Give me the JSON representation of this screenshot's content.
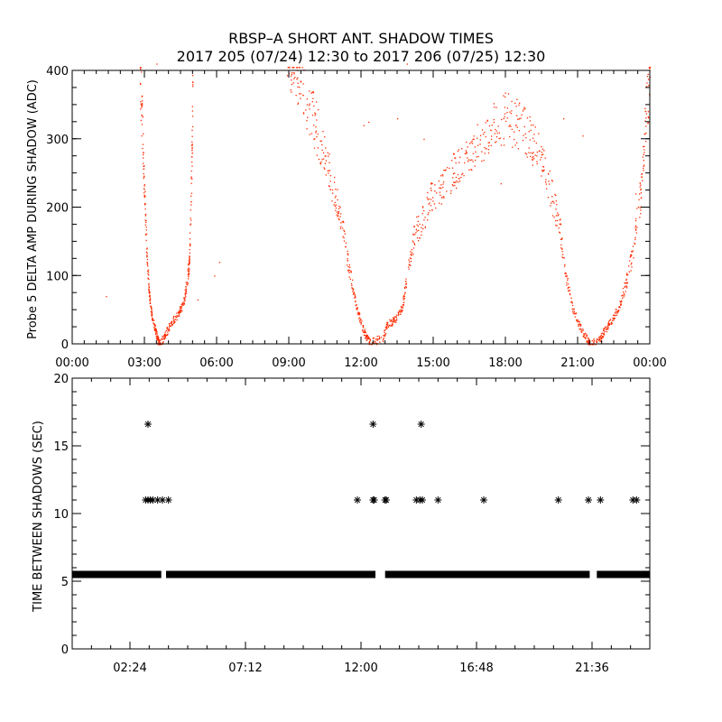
{
  "figure": {
    "title_line1": "RBSP–A SHORT ANT. SHADOW TIMES",
    "title_line2": "2017 205 (07/24) 12:30 to 2017 206 (07/25) 12:30"
  },
  "colors": {
    "shadow_amp": "#ff2a00",
    "gap_marks": "#000000",
    "axes": "#000000"
  },
  "chart_data": [
    {
      "id": "top",
      "type": "scatter",
      "ylabel": "Probe 5 DELTA AMP DURING SHADOW (ADC)",
      "xlabel": "",
      "xlim_hours": [
        0,
        24
      ],
      "ylim": [
        0,
        400
      ],
      "x_tick_labels": [
        "00:00",
        "03:00",
        "06:00",
        "09:00",
        "12:00",
        "15:00",
        "18:00",
        "21:00",
        "00:00"
      ],
      "y_tick_labels": [
        "0",
        "100",
        "200",
        "300",
        "400"
      ],
      "grid": false,
      "series": [
        {
          "color": "#ff2a00",
          "envelope_hours": [
            [
              2.8,
              400
            ],
            [
              2.9,
              320
            ],
            [
              3.0,
              210
            ],
            [
              3.1,
              120
            ],
            [
              3.2,
              70
            ],
            [
              3.3,
              40
            ],
            [
              3.45,
              20
            ],
            [
              3.55,
              5
            ],
            [
              3.65,
              0
            ],
            [
              3.85,
              15
            ],
            [
              4.1,
              30
            ],
            [
              4.4,
              45
            ],
            [
              4.6,
              60
            ],
            [
              4.75,
              90
            ],
            [
              4.85,
              120
            ],
            [
              4.95,
              250
            ],
            [
              5.0,
              400
            ],
            [
              8.9,
              400
            ],
            [
              9.3,
              390
            ],
            [
              9.7,
              360
            ],
            [
              10.1,
              320
            ],
            [
              10.5,
              270
            ],
            [
              10.9,
              220
            ],
            [
              11.2,
              170
            ],
            [
              11.5,
              110
            ],
            [
              11.75,
              60
            ],
            [
              12.0,
              30
            ],
            [
              12.2,
              10
            ],
            [
              12.4,
              2
            ],
            [
              12.9,
              10
            ],
            [
              13.1,
              30
            ],
            [
              13.4,
              35
            ],
            [
              13.7,
              55
            ],
            [
              13.9,
              100
            ],
            [
              14.2,
              160
            ],
            [
              14.6,
              190
            ],
            [
              15.0,
              220
            ],
            [
              15.5,
              240
            ],
            [
              16.0,
              260
            ],
            [
              16.5,
              280
            ],
            [
              17.0,
              300
            ],
            [
              17.5,
              320
            ],
            [
              18.0,
              330
            ],
            [
              18.5,
              320
            ],
            [
              19.0,
              300
            ],
            [
              19.4,
              280
            ],
            [
              19.8,
              230
            ],
            [
              20.2,
              180
            ],
            [
              20.5,
              100
            ],
            [
              20.8,
              50
            ],
            [
              21.1,
              25
            ],
            [
              21.4,
              5
            ],
            [
              21.5,
              0
            ],
            [
              21.9,
              5
            ],
            [
              22.1,
              20
            ],
            [
              22.4,
              35
            ],
            [
              22.7,
              55
            ],
            [
              23.0,
              90
            ],
            [
              23.3,
              140
            ],
            [
              23.6,
              220
            ],
            [
              23.8,
              320
            ],
            [
              24.0,
              400
            ]
          ],
          "isolated_points_hours": [
            [
              1.4,
              70
            ],
            [
              3.5,
              410
            ],
            [
              5.2,
              65
            ],
            [
              5.9,
              100
            ],
            [
              6.1,
              120
            ],
            [
              9.1,
              395
            ],
            [
              10.1,
              310
            ],
            [
              12.1,
              320
            ],
            [
              12.3,
              325
            ],
            [
              13.5,
              330
            ],
            [
              13.9,
              410
            ],
            [
              14.6,
              300
            ],
            [
              16.2,
              250
            ],
            [
              17.8,
              235
            ],
            [
              20.4,
              330
            ],
            [
              21.2,
              305
            ],
            [
              23.4,
              220
            ]
          ]
        }
      ]
    },
    {
      "id": "bottom",
      "type": "scatter",
      "ylabel": "TIME BETWEEN SHADOWS (SEC)",
      "xlabel": "",
      "xlim_hours": [
        0,
        24
      ],
      "ylim": [
        0,
        20
      ],
      "x_tick_labels": [
        "02:24",
        "07:12",
        "12:00",
        "16:48",
        "21:36"
      ],
      "y_tick_labels": [
        "0",
        "5",
        "10",
        "15",
        "20"
      ],
      "grid": false,
      "series": [
        {
          "marker": "asterisk",
          "color": "#000000",
          "baseline_value": 5.5,
          "baseline_segments_hours": [
            [
              0.0,
              3.7
            ],
            [
              3.9,
              12.6
            ],
            [
              13.0,
              21.5
            ],
            [
              21.8,
              24.0
            ]
          ],
          "points": [
            {
              "x": 3.15,
              "y": 16.6
            },
            {
              "x": 12.5,
              "y": 16.6
            },
            {
              "x": 14.5,
              "y": 16.6
            },
            {
              "x": 3.05,
              "y": 11.0
            },
            {
              "x": 3.15,
              "y": 11.0
            },
            {
              "x": 3.25,
              "y": 11.0
            },
            {
              "x": 3.35,
              "y": 11.0
            },
            {
              "x": 3.55,
              "y": 11.0
            },
            {
              "x": 3.75,
              "y": 11.0
            },
            {
              "x": 4.0,
              "y": 11.0
            },
            {
              "x": 11.85,
              "y": 11.0
            },
            {
              "x": 12.5,
              "y": 11.0
            },
            {
              "x": 12.55,
              "y": 11.0
            },
            {
              "x": 13.0,
              "y": 11.0
            },
            {
              "x": 13.05,
              "y": 11.0
            },
            {
              "x": 14.3,
              "y": 11.0
            },
            {
              "x": 14.45,
              "y": 11.0
            },
            {
              "x": 14.55,
              "y": 11.0
            },
            {
              "x": 15.2,
              "y": 11.0
            },
            {
              "x": 17.1,
              "y": 11.0
            },
            {
              "x": 20.2,
              "y": 11.0
            },
            {
              "x": 21.45,
              "y": 11.0
            },
            {
              "x": 21.95,
              "y": 11.0
            },
            {
              "x": 23.3,
              "y": 11.0
            },
            {
              "x": 23.45,
              "y": 11.0
            }
          ]
        }
      ]
    }
  ]
}
